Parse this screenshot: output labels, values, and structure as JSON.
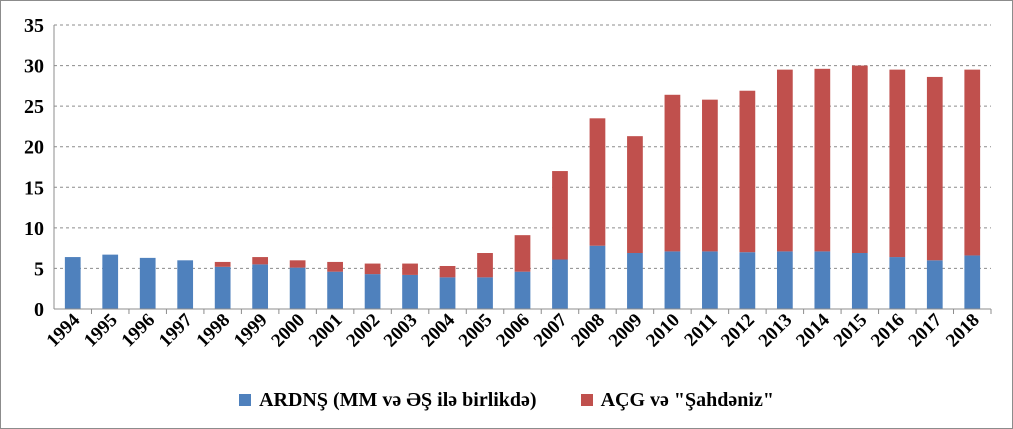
{
  "chart_data": {
    "type": "bar",
    "stacked": true,
    "categories": [
      "1994",
      "1995",
      "1996",
      "1997",
      "1998",
      "1999",
      "2000",
      "2001",
      "2002",
      "2003",
      "2004",
      "2005",
      "2006",
      "2007",
      "2008",
      "2009",
      "2010",
      "2011",
      "2012",
      "2013",
      "2014",
      "2015",
      "2016",
      "2017",
      "2018"
    ],
    "series": [
      {
        "name": "ARDNŞ (MM və ƏŞ ilə birlikdə)",
        "color": "#4f81bd",
        "values": [
          6.4,
          6.7,
          6.3,
          6.0,
          5.2,
          5.5,
          5.1,
          4.6,
          4.3,
          4.2,
          3.9,
          3.9,
          4.6,
          6.1,
          7.8,
          6.9,
          7.1,
          7.1,
          7.0,
          7.1,
          7.1,
          6.9,
          6.4,
          6.0,
          6.6
        ]
      },
      {
        "name": "AÇG və \"Şahdəniz\"",
        "color": "#c0504d",
        "values": [
          0,
          0,
          0,
          0,
          0.6,
          0.9,
          0.9,
          1.2,
          1.3,
          1.4,
          1.4,
          3.0,
          4.5,
          10.9,
          15.7,
          14.4,
          19.3,
          18.7,
          19.9,
          22.4,
          22.5,
          23.1,
          23.1,
          22.6,
          22.9
        ]
      }
    ],
    "ylim": [
      0,
      35
    ],
    "yticks": [
      0,
      5,
      10,
      15,
      20,
      25,
      30,
      35
    ],
    "grid": true,
    "legend_position": "bottom",
    "title": "",
    "xlabel": "",
    "ylabel": ""
  }
}
